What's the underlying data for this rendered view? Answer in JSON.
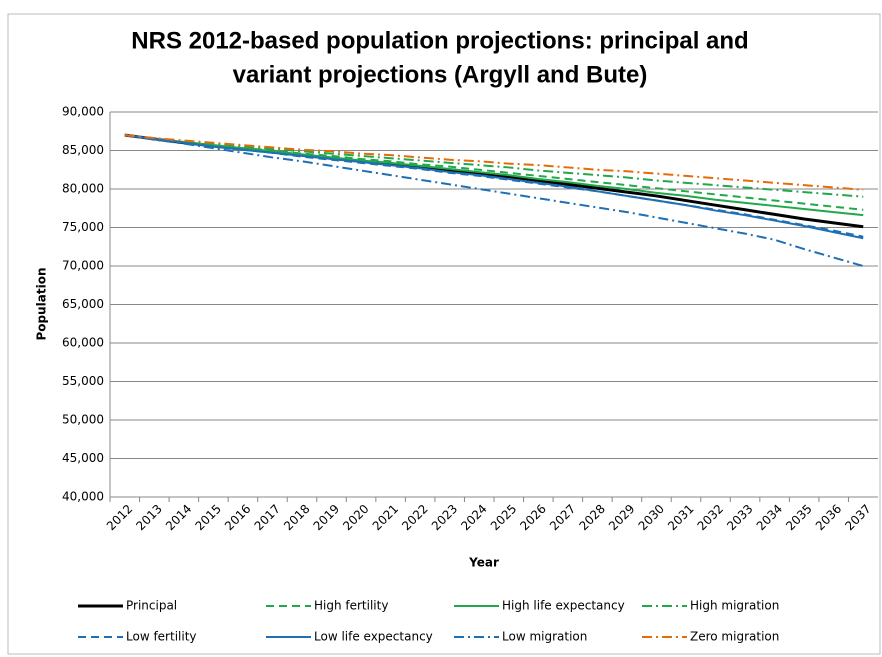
{
  "chart_data": {
    "type": "line",
    "title": [
      "NRS 2012-based population projections: principal and",
      "variant projections (Argyll and Bute)"
    ],
    "x_label": "Year",
    "y_label": "Population",
    "categories": [
      "2012",
      "2013",
      "2014",
      "2015",
      "2016",
      "2017",
      "2018",
      "2019",
      "2020",
      "2021",
      "2022",
      "2023",
      "2024",
      "2025",
      "2026",
      "2027",
      "2028",
      "2029",
      "2030",
      "2031",
      "2032",
      "2033",
      "2034",
      "2035",
      "2036",
      "2037"
    ],
    "ylim": [
      40000,
      90000
    ],
    "yticks": [
      {
        "value": 40000,
        "label": "40,000"
      },
      {
        "value": 45000,
        "label": "45,000"
      },
      {
        "value": 50000,
        "label": "50,000"
      },
      {
        "value": 55000,
        "label": "55,000"
      },
      {
        "value": 60000,
        "label": "60,000"
      },
      {
        "value": 65000,
        "label": "65,000"
      },
      {
        "value": 70000,
        "label": "70,000"
      },
      {
        "value": 75000,
        "label": "75,000"
      },
      {
        "value": 80000,
        "label": "80,000"
      },
      {
        "value": 85000,
        "label": "85,000"
      },
      {
        "value": 90000,
        "label": "90,000"
      }
    ],
    "grid": true,
    "legend": "bottom",
    "series": [
      {
        "name": "Principal",
        "color": "#000000",
        "dash": "solid",
        "values": [
          87000,
          86500,
          86000,
          85600,
          85200,
          84800,
          84400,
          84000,
          83600,
          83200,
          82800,
          82400,
          82000,
          81600,
          81100,
          80600,
          80100,
          79600,
          79100,
          78500,
          77900,
          77300,
          76700,
          76100,
          75600,
          75100
        ]
      },
      {
        "name": "High fertility",
        "color": "#22a84a",
        "dash": "dash",
        "values": [
          87000,
          86500,
          86100,
          85700,
          85300,
          85000,
          84600,
          84300,
          83900,
          83600,
          83200,
          82900,
          82500,
          82100,
          81700,
          81300,
          80900,
          80500,
          80100,
          79700,
          79300,
          78900,
          78500,
          78100,
          77700,
          77300
        ]
      },
      {
        "name": "High life expectancy",
        "color": "#22a84a",
        "dash": "solid",
        "values": [
          87000,
          86500,
          86100,
          85700,
          85300,
          84900,
          84500,
          84100,
          83700,
          83400,
          83000,
          82600,
          82200,
          81800,
          81300,
          80900,
          80400,
          80000,
          79500,
          79100,
          78600,
          78200,
          77800,
          77400,
          77000,
          76600
        ]
      },
      {
        "name": "High migration",
        "color": "#22a84a",
        "dash": "dashdot",
        "values": [
          87000,
          86600,
          86200,
          85800,
          85500,
          85200,
          84900,
          84600,
          84300,
          84000,
          83700,
          83400,
          83100,
          82800,
          82400,
          82100,
          81800,
          81500,
          81100,
          80800,
          80500,
          80200,
          79900,
          79600,
          79300,
          79000
        ]
      },
      {
        "name": "Low fertility",
        "color": "#1f6fb5",
        "dash": "dash",
        "values": [
          87000,
          86500,
          86000,
          85500,
          85100,
          84700,
          84200,
          83800,
          83400,
          83000,
          82600,
          82100,
          81700,
          81200,
          80700,
          80200,
          79700,
          79100,
          78500,
          77900,
          77300,
          76700,
          76000,
          75300,
          74600,
          73800
        ]
      },
      {
        "name": "Low life expectancy",
        "color": "#1f6fb5",
        "dash": "solid",
        "values": [
          87000,
          86500,
          86000,
          85500,
          85100,
          84700,
          84300,
          83900,
          83500,
          83100,
          82700,
          82200,
          81800,
          81300,
          80800,
          80300,
          79700,
          79100,
          78500,
          77900,
          77200,
          76600,
          75900,
          75200,
          74400,
          73600
        ]
      },
      {
        "name": "Low migration",
        "color": "#1f6fb5",
        "dash": "dashdot",
        "values": [
          87000,
          86400,
          85900,
          85300,
          84700,
          84100,
          83600,
          83000,
          82400,
          81800,
          81200,
          80600,
          80000,
          79400,
          78800,
          78200,
          77600,
          77000,
          76300,
          75600,
          74900,
          74200,
          73400,
          72200,
          71100,
          70000
        ]
      },
      {
        "name": "Zero migration",
        "color": "#e36c09",
        "dash": "dashdot",
        "values": [
          87000,
          86600,
          86300,
          86000,
          85700,
          85400,
          85100,
          84900,
          84600,
          84400,
          84100,
          83800,
          83600,
          83300,
          83100,
          82800,
          82500,
          82300,
          82000,
          81700,
          81400,
          81100,
          80800,
          80500,
          80200,
          79900
        ]
      }
    ]
  }
}
